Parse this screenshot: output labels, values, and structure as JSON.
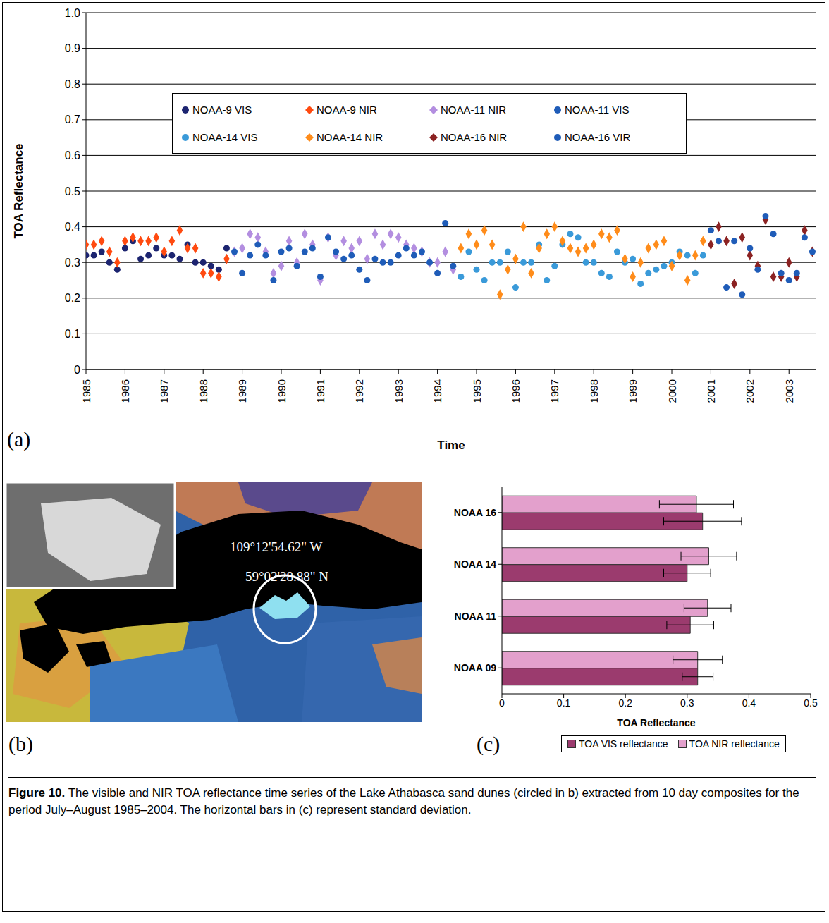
{
  "chart_data": [
    {
      "type": "scatter",
      "panel": "(a)",
      "x_label": "Time",
      "y_label": "TOA Reflectance",
      "xlim": [
        1985,
        2003.7
      ],
      "xticks": [
        1985,
        1986,
        1987,
        1988,
        1989,
        1990,
        1991,
        1992,
        1993,
        1994,
        1995,
        1996,
        1997,
        1998,
        1999,
        2000,
        2001,
        2002,
        2003
      ],
      "ylim": [
        0,
        1
      ],
      "yticks": [
        0,
        0.1,
        0.2,
        0.3,
        0.4,
        0.5,
        0.6,
        0.7,
        0.8,
        0.9,
        {
          "value": 1,
          "label": "1.0"
        }
      ],
      "grid": true,
      "legend": "top",
      "series": [
        {
          "name": "NOAA-9 VIS",
          "color": "#1c2470",
          "marker": "circle",
          "x": [
            1985,
            1985.2,
            1985.4,
            1985.6,
            1985.8,
            1986,
            1986.2,
            1986.4,
            1986.6,
            1986.8,
            1987,
            1987.2,
            1987.4,
            1987.6,
            1987.8,
            1988,
            1988.2,
            1988.4,
            1988.6
          ],
          "values": [
            0.32,
            0.32,
            0.33,
            0.3,
            0.28,
            0.34,
            0.36,
            0.31,
            0.32,
            0.34,
            0.32,
            0.32,
            0.31,
            0.35,
            0.3,
            0.3,
            0.29,
            0.28,
            0.34
          ]
        },
        {
          "name": "NOAA-9 NIR",
          "color": "#ff4a10",
          "marker": "diamond",
          "x": [
            1985,
            1985.2,
            1985.4,
            1985.6,
            1985.8,
            1986,
            1986.2,
            1986.4,
            1986.6,
            1986.8,
            1987,
            1987.2,
            1987.4,
            1987.6,
            1987.8,
            1988,
            1988.2,
            1988.4,
            1988.6
          ],
          "values": [
            0.35,
            0.35,
            0.36,
            0.33,
            0.3,
            0.36,
            0.37,
            0.36,
            0.36,
            0.37,
            0.33,
            0.36,
            0.39,
            0.34,
            0.34,
            0.27,
            0.27,
            0.26,
            0.31
          ]
        },
        {
          "name": "NOAA-11 NIR",
          "color": "#b38ee0",
          "marker": "diamond",
          "x": [
            1988.8,
            1989,
            1989.2,
            1989.4,
            1989.6,
            1989.8,
            1990,
            1990.2,
            1990.4,
            1990.6,
            1990.8,
            1991,
            1991.2,
            1991.4,
            1991.6,
            1991.8,
            1992,
            1992.2,
            1992.4,
            1992.6,
            1992.8,
            1993,
            1993.2,
            1993.4,
            1993.6,
            1993.8,
            1994,
            1994.2,
            1994.4
          ],
          "values": [
            0.33,
            0.34,
            0.38,
            0.37,
            0.33,
            0.27,
            0.29,
            0.36,
            0.3,
            0.38,
            0.35,
            0.25,
            0.37,
            0.32,
            0.36,
            0.34,
            0.36,
            0.31,
            0.38,
            0.35,
            0.38,
            0.37,
            0.35,
            0.34,
            0.33,
            0.3,
            0.3,
            0.33,
            0.28
          ]
        },
        {
          "name": "NOAA-11 VIS",
          "color": "#1f5cb8",
          "marker": "circle",
          "x": [
            1988.8,
            1989,
            1989.2,
            1989.4,
            1989.6,
            1989.8,
            1990,
            1990.2,
            1990.4,
            1990.6,
            1990.8,
            1991,
            1991.2,
            1991.4,
            1991.6,
            1991.8,
            1992,
            1992.2,
            1992.4,
            1992.6,
            1992.8,
            1993,
            1993.2,
            1993.4,
            1993.6,
            1993.8,
            1994,
            1994.2,
            1994.4
          ],
          "values": [
            0.33,
            0.27,
            0.32,
            0.35,
            0.32,
            0.25,
            0.33,
            0.34,
            0.29,
            0.33,
            0.34,
            0.26,
            0.37,
            0.33,
            0.31,
            0.32,
            0.28,
            0.25,
            0.31,
            0.3,
            0.3,
            0.32,
            0.34,
            0.32,
            0.33,
            0.3,
            0.27,
            0.41,
            0.29
          ]
        },
        {
          "name": "NOAA-14 VIS",
          "color": "#3a9ad9",
          "marker": "circle",
          "x": [
            1994.6,
            1994.8,
            1995,
            1995.2,
            1995.4,
            1995.6,
            1995.8,
            1996,
            1996.2,
            1996.4,
            1996.6,
            1996.8,
            1997,
            1997.2,
            1997.4,
            1997.6,
            1997.8,
            1998,
            1998.2,
            1998.4,
            1998.6,
            1998.8,
            1999,
            1999.2,
            1999.4,
            1999.6,
            1999.8,
            2000,
            2000.2,
            2000.4,
            2000.6,
            2000.8
          ],
          "values": [
            0.26,
            0.33,
            0.28,
            0.25,
            0.3,
            0.3,
            0.33,
            0.23,
            0.3,
            0.3,
            0.35,
            0.25,
            0.29,
            0.35,
            0.38,
            0.37,
            0.3,
            0.3,
            0.27,
            0.26,
            0.33,
            0.3,
            0.31,
            0.24,
            0.27,
            0.28,
            0.29,
            0.3,
            0.33,
            0.32,
            0.27,
            0.32
          ]
        },
        {
          "name": "NOAA-14 NIR",
          "color": "#ff8c1a",
          "marker": "diamond",
          "x": [
            1994.6,
            1994.8,
            1995,
            1995.2,
            1995.4,
            1995.6,
            1995.8,
            1996,
            1996.2,
            1996.4,
            1996.6,
            1996.8,
            1997,
            1997.2,
            1997.4,
            1997.6,
            1997.8,
            1998,
            1998.2,
            1998.4,
            1998.6,
            1998.8,
            1999,
            1999.2,
            1999.4,
            1999.6,
            1999.8,
            2000,
            2000.2,
            2000.4,
            2000.6,
            2000.8
          ],
          "values": [
            0.34,
            0.38,
            0.35,
            0.39,
            0.35,
            0.21,
            0.28,
            0.31,
            0.4,
            0.27,
            0.34,
            0.38,
            0.4,
            0.36,
            0.34,
            0.33,
            0.34,
            0.35,
            0.38,
            0.37,
            0.39,
            0.31,
            0.26,
            0.3,
            0.34,
            0.35,
            0.36,
            0.29,
            0.32,
            0.25,
            0.32,
            0.36
          ]
        },
        {
          "name": "NOAA-16 NIR",
          "color": "#8b2222",
          "marker": "diamond",
          "x": [
            2001,
            2001.2,
            2001.4,
            2001.6,
            2001.8,
            2002,
            2002.2,
            2002.4,
            2002.6,
            2002.8,
            2003,
            2003.2,
            2003.4,
            2003.6
          ],
          "values": [
            0.35,
            0.4,
            0.36,
            0.24,
            0.37,
            0.32,
            0.29,
            0.42,
            0.26,
            0.26,
            0.3,
            0.26,
            0.39,
            0.33
          ]
        },
        {
          "name": "NOAA-16 VIR",
          "color": "#1f5cb8",
          "marker": "circle",
          "x": [
            2001,
            2001.2,
            2001.4,
            2001.6,
            2001.8,
            2002,
            2002.2,
            2002.4,
            2002.6,
            2002.8,
            2003,
            2003.2,
            2003.4,
            2003.6
          ],
          "values": [
            0.39,
            0.36,
            0.23,
            0.36,
            0.21,
            0.34,
            0.28,
            0.43,
            0.38,
            0.27,
            0.25,
            0.27,
            0.37,
            0.33
          ]
        }
      ]
    },
    {
      "type": "bar",
      "panel": "(c)",
      "orientation": "horizontal",
      "x_label": "TOA Reflectance",
      "categories": [
        "NOAA 16",
        "NOAA 14",
        "NOAA 11",
        "NOAA 09"
      ],
      "xlim": [
        0,
        0.5
      ],
      "xticks": [
        0,
        0.1,
        0.2,
        0.3,
        0.4,
        0.5
      ],
      "grid": false,
      "legend": "bottom",
      "series": [
        {
          "name": "TOA VIS reflectance",
          "color": "#9b3b6e",
          "values": [
            0.325,
            0.3,
            0.305,
            0.317
          ],
          "errors": [
            0.063,
            0.038,
            0.038,
            0.025
          ]
        },
        {
          "name": "TOA NIR reflectance",
          "color": "#e3a0cc",
          "values": [
            0.315,
            0.335,
            0.333,
            0.317
          ],
          "errors": [
            0.06,
            0.045,
            0.038,
            0.04
          ]
        }
      ]
    }
  ],
  "image": {
    "panel": "(b)",
    "labels": [
      "109°12'54.62\" W",
      "59°02'28.88\" N"
    ]
  },
  "caption": {
    "label": "Figure 10.",
    "text": "The visible and NIR TOA reflectance time series of the Lake Athabasca sand dunes (circled in b) extracted from 10 day composites for the period July–August 1985–2004. The horizontal bars in (c) represent standard deviation."
  }
}
